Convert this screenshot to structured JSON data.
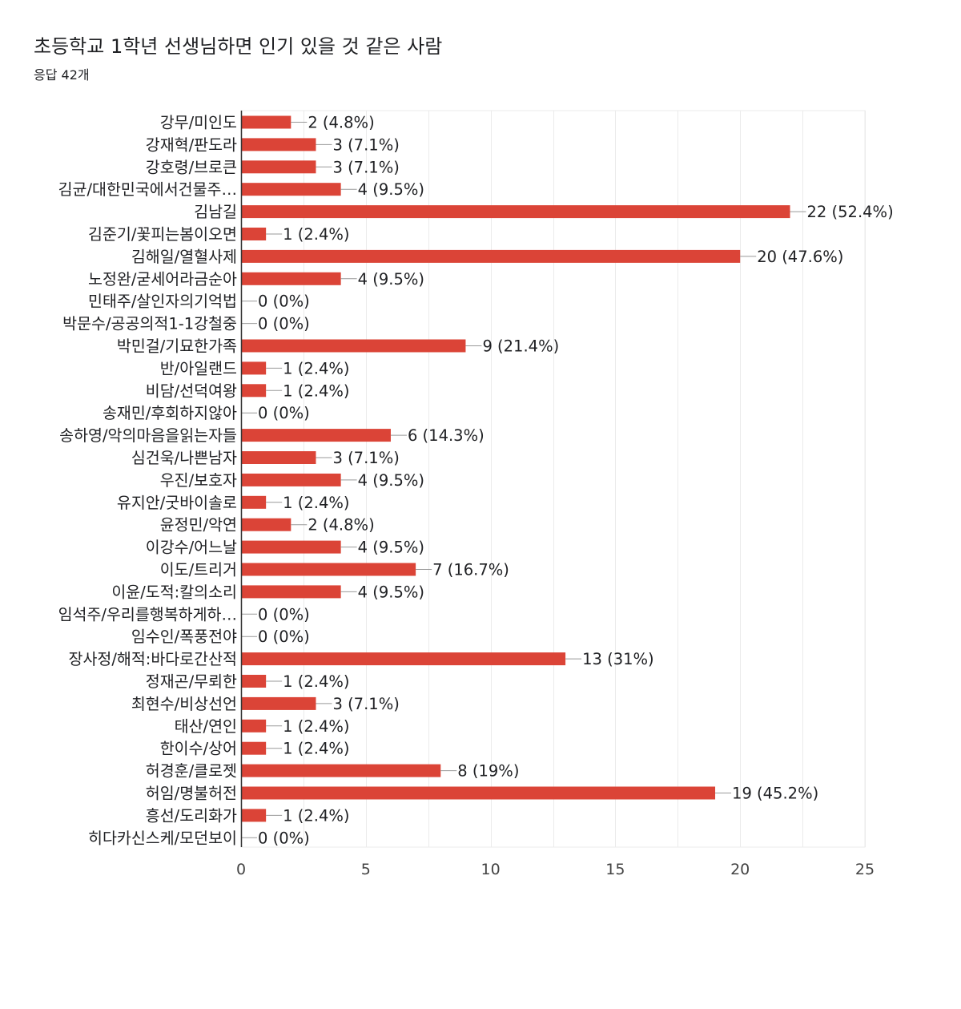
{
  "header": {
    "title": "초등학교 1학년 선생님하면 인기 있을 것 같은 사람",
    "subtitle": "응답 42개"
  },
  "colors": {
    "bar": "#db4437",
    "grid": "#ebebeb",
    "axis": "#333333",
    "text": "#202124"
  },
  "chart_data": {
    "type": "bar",
    "orientation": "horizontal",
    "title": "초등학교 1학년 선생님하면 인기 있을 것 같은 사람",
    "subtitle": "응답 42개",
    "xlim": [
      0,
      25
    ],
    "x_ticks": [
      0,
      5,
      10,
      15,
      20,
      25
    ],
    "grid": true,
    "legend": "none",
    "categories": [
      "강무/미인도",
      "강재혁/판도라",
      "강호령/브로큰",
      "김균/대한민국에서건물주…",
      "김남길",
      "김준기/꽃피는봄이오면",
      "김해일/열혈사제",
      "노정완/굳세어라금순아",
      "민태주/살인자의기억법",
      "박문수/공공의적1-1강철중",
      "박민걸/기묘한가족",
      "반/아일랜드",
      "비담/선덕여왕",
      "송재민/후회하지않아",
      "송하영/악의마음을읽는자들",
      "심건욱/나쁜남자",
      "우진/보호자",
      "유지안/굿바이솔로",
      "윤정민/악연",
      "이강수/어느날",
      "이도/트리거",
      "이윤/도적:칼의소리",
      "임석주/우리를행복하게하…",
      "임수인/폭풍전야",
      "장사정/해적:바다로간산적",
      "정재곤/무뢰한",
      "최현수/비상선언",
      "태산/연인",
      "한이수/상어",
      "허경훈/클로젯",
      "허임/명불허전",
      "흥선/도리화가",
      "히다카신스케/모던보이"
    ],
    "values": [
      2,
      3,
      3,
      4,
      22,
      1,
      20,
      4,
      0,
      0,
      9,
      1,
      1,
      0,
      6,
      3,
      4,
      1,
      2,
      4,
      7,
      4,
      0,
      0,
      13,
      1,
      3,
      1,
      1,
      8,
      19,
      1,
      0
    ],
    "data_labels": [
      "2 (4.8%)",
      "3 (7.1%)",
      "3 (7.1%)",
      "4 (9.5%)",
      "22 (52.4%)",
      "1 (2.4%)",
      "20 (47.6%)",
      "4 (9.5%)",
      "0 (0%)",
      "0 (0%)",
      "9 (21.4%)",
      "1 (2.4%)",
      "1 (2.4%)",
      "0 (0%)",
      "6 (14.3%)",
      "3 (7.1%)",
      "4 (9.5%)",
      "1 (2.4%)",
      "2 (4.8%)",
      "4 (9.5%)",
      "7 (16.7%)",
      "4 (9.5%)",
      "0 (0%)",
      "0 (0%)",
      "13 (31%)",
      "1 (2.4%)",
      "3 (7.1%)",
      "1 (2.4%)",
      "1 (2.4%)",
      "8 (19%)",
      "19 (45.2%)",
      "1 (2.4%)",
      "0 (0%)"
    ]
  }
}
